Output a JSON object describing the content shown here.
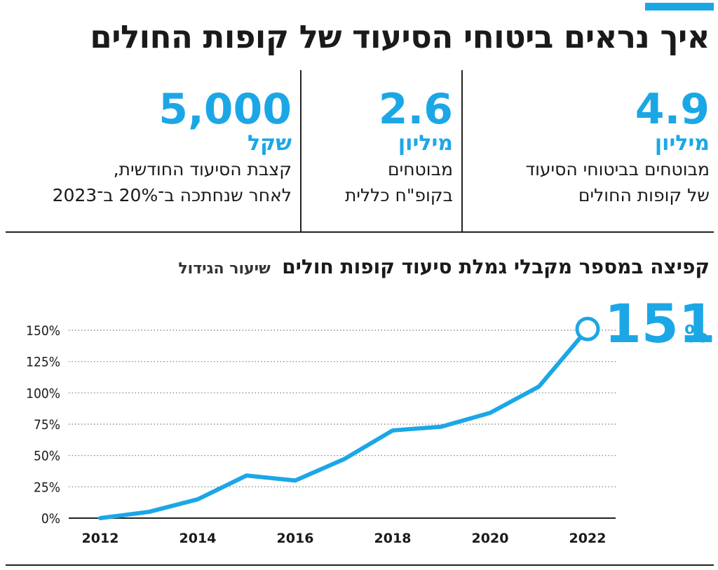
{
  "colors": {
    "accent": "#1ba7e6",
    "text": "#1a1a1a",
    "grid": "#777777"
  },
  "title": "איך נראים ביטוחי הסיעוד של קופות החולים",
  "stats": [
    {
      "value": "4.9",
      "unit": "מיליון",
      "desc_line1": "מבוטחים בביטוחי הסיעוד",
      "desc_line2": "של קופות החולים"
    },
    {
      "value": "2.6",
      "unit": "מיליון",
      "desc_line1": "מבוטחים",
      "desc_line2": "בקופ\"ח כללית"
    },
    {
      "value": "5,000",
      "unit": "שקל",
      "desc_line1": "קצבת הסיעוד החודשית,",
      "desc_line2": "לאחר שנחתכה ב־20% ב־2023"
    }
  ],
  "chart_title": "קפיצה במספר מקבלי גמלת סיעוד קופות חולים",
  "chart_subtitle": "שיעור הגידול",
  "chart_data": {
    "type": "line",
    "title": "קפיצה במספר מקבלי גמלת סיעוד קופות חולים",
    "subtitle": "שיעור הגידול",
    "x": [
      2012,
      2013,
      2014,
      2015,
      2016,
      2017,
      2018,
      2019,
      2020,
      2021,
      2022
    ],
    "series": [
      {
        "values": [
          0,
          5,
          15,
          34,
          30,
          47,
          70,
          73,
          84,
          105,
          151
        ]
      }
    ],
    "y_ticks": [
      "0%",
      "25%",
      "50%",
      "75%",
      "100%",
      "125%",
      "150%"
    ],
    "y_tick_values": [
      0,
      25,
      50,
      75,
      100,
      125,
      150
    ],
    "x_ticks": [
      "2012",
      "2014",
      "2016",
      "2018",
      "2020",
      "2022"
    ],
    "ylim": [
      0,
      150
    ],
    "xlim": [
      2012,
      2022
    ],
    "grid": "horizontal-dotted",
    "annotation": {
      "value": "151",
      "unit": "%"
    },
    "legend": "none"
  }
}
